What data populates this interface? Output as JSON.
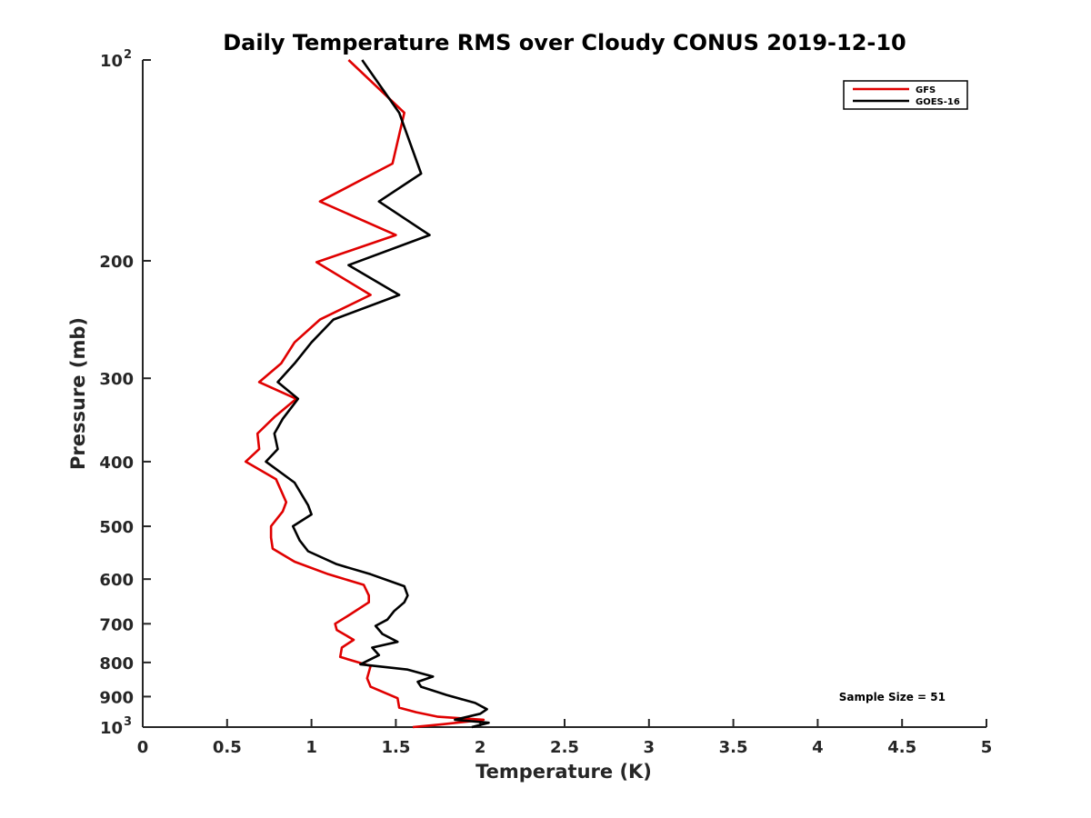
{
  "chart_data": {
    "type": "line",
    "title": "Daily Temperature RMS over Cloudy CONUS 2019-12-10",
    "xlabel": "Temperature (K)",
    "ylabel": "Pressure (mb)",
    "xlim": [
      0,
      5
    ],
    "ylim": [
      100,
      1000
    ],
    "yscale": "log",
    "yreversed": true,
    "x_ticks": [
      0,
      0.5,
      1,
      1.5,
      2,
      2.5,
      3,
      3.5,
      4,
      4.5,
      5
    ],
    "x_tick_labels": [
      "0",
      "0.5",
      "1",
      "1.5",
      "2",
      "2.5",
      "3",
      "3.5",
      "4",
      "4.5",
      "5"
    ],
    "y_ticks": [
      {
        "value": 100,
        "base": "10",
        "exp": "2"
      },
      {
        "value": 200,
        "label": "200"
      },
      {
        "value": 300,
        "label": "300"
      },
      {
        "value": 400,
        "label": "400"
      },
      {
        "value": 500,
        "label": "500"
      },
      {
        "value": 600,
        "label": "600"
      },
      {
        "value": 700,
        "label": "700"
      },
      {
        "value": 800,
        "label": "800"
      },
      {
        "value": 900,
        "label": "900"
      },
      {
        "value": 1000,
        "base": "10",
        "exp": "3"
      }
    ],
    "grid": false,
    "legend_position": "top-right",
    "annotation": "Sample Size = 51",
    "series": [
      {
        "name": "GFS",
        "color": "#e00000",
        "points": [
          [
            1.22,
            100
          ],
          [
            1.55,
            120
          ],
          [
            1.48,
            143
          ],
          [
            1.05,
            163
          ],
          [
            1.5,
            183
          ],
          [
            1.03,
            201
          ],
          [
            1.35,
            225
          ],
          [
            1.05,
            245
          ],
          [
            0.9,
            265
          ],
          [
            0.82,
            285
          ],
          [
            0.69,
            304
          ],
          [
            0.91,
            322
          ],
          [
            0.78,
            343
          ],
          [
            0.68,
            363
          ],
          [
            0.69,
            383
          ],
          [
            0.61,
            400
          ],
          [
            0.79,
            425
          ],
          [
            0.85,
            460
          ],
          [
            0.83,
            475
          ],
          [
            0.76,
            500
          ],
          [
            0.76,
            520
          ],
          [
            0.77,
            540
          ],
          [
            0.9,
            565
          ],
          [
            1.1,
            590
          ],
          [
            1.31,
            612
          ],
          [
            1.34,
            635
          ],
          [
            1.34,
            650
          ],
          [
            1.22,
            680
          ],
          [
            1.14,
            700
          ],
          [
            1.15,
            715
          ],
          [
            1.25,
            740
          ],
          [
            1.18,
            760
          ],
          [
            1.17,
            785
          ],
          [
            1.35,
            810
          ],
          [
            1.33,
            845
          ],
          [
            1.35,
            870
          ],
          [
            1.51,
            905
          ],
          [
            1.52,
            935
          ],
          [
            1.62,
            950
          ],
          [
            1.75,
            965
          ],
          [
            2.02,
            975
          ],
          [
            1.78,
            990
          ],
          [
            1.6,
            1000
          ]
        ]
      },
      {
        "name": "GOES-16",
        "color": "#000000",
        "points": [
          [
            1.3,
            100
          ],
          [
            1.52,
            120
          ],
          [
            1.65,
            148
          ],
          [
            1.4,
            163
          ],
          [
            1.7,
            183
          ],
          [
            1.22,
            203
          ],
          [
            1.52,
            225
          ],
          [
            1.13,
            245
          ],
          [
            1.0,
            265
          ],
          [
            0.9,
            285
          ],
          [
            0.8,
            304
          ],
          [
            0.92,
            322
          ],
          [
            0.83,
            345
          ],
          [
            0.78,
            363
          ],
          [
            0.8,
            383
          ],
          [
            0.73,
            400
          ],
          [
            0.9,
            430
          ],
          [
            0.98,
            465
          ],
          [
            1.0,
            480
          ],
          [
            0.89,
            500
          ],
          [
            0.93,
            525
          ],
          [
            0.98,
            545
          ],
          [
            1.15,
            570
          ],
          [
            1.35,
            590
          ],
          [
            1.55,
            615
          ],
          [
            1.57,
            635
          ],
          [
            1.55,
            650
          ],
          [
            1.49,
            670
          ],
          [
            1.45,
            690
          ],
          [
            1.38,
            705
          ],
          [
            1.42,
            725
          ],
          [
            1.51,
            745
          ],
          [
            1.36,
            760
          ],
          [
            1.4,
            780
          ],
          [
            1.29,
            805
          ],
          [
            1.57,
            820
          ],
          [
            1.72,
            840
          ],
          [
            1.63,
            855
          ],
          [
            1.65,
            870
          ],
          [
            1.8,
            895
          ],
          [
            1.97,
            920
          ],
          [
            2.04,
            940
          ],
          [
            2.0,
            955
          ],
          [
            1.85,
            975
          ],
          [
            2.05,
            985
          ],
          [
            1.95,
            1000
          ]
        ]
      }
    ]
  }
}
